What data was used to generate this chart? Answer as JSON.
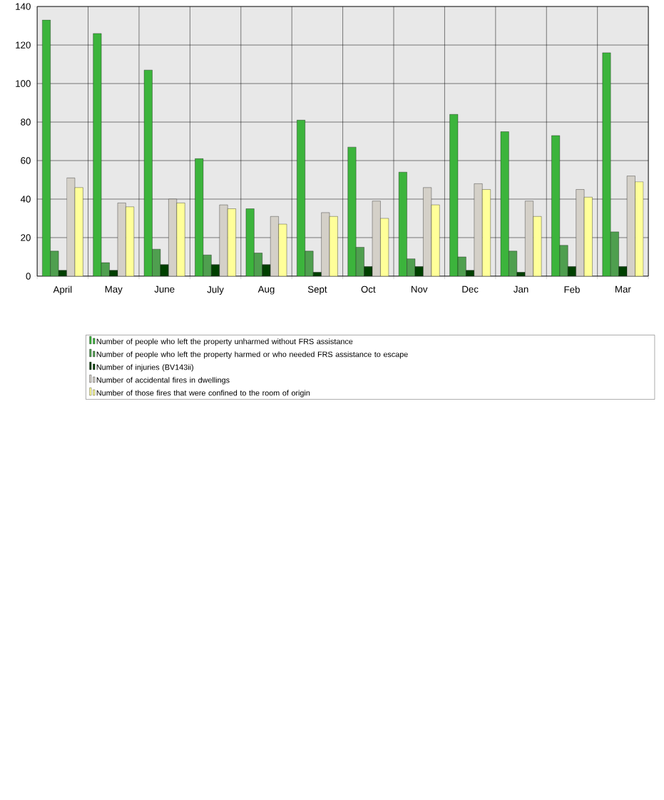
{
  "chart_data": {
    "type": "bar",
    "categories": [
      "April",
      "May",
      "June",
      "July",
      "Aug",
      "Sept",
      "Oct",
      "Nov",
      "Dec",
      "Jan",
      "Feb",
      "Mar"
    ],
    "series": [
      {
        "name": "Number of people who left the property unharmed without FRS assistance",
        "color": "#3cb43c",
        "values": [
          133,
          126,
          107,
          61,
          35,
          81,
          67,
          54,
          84,
          75,
          73,
          116
        ]
      },
      {
        "name": "Number of people who left the property harmed or who needed FRS assistance to escape",
        "color": "#4f9f4f",
        "values": [
          13,
          7,
          14,
          11,
          12,
          13,
          15,
          9,
          10,
          13,
          16,
          23
        ]
      },
      {
        "name": "Number of injuries (BV143ii)",
        "color": "#004000",
        "values": [
          3,
          3,
          6,
          6,
          6,
          2,
          5,
          5,
          3,
          2,
          5,
          5
        ]
      },
      {
        "name": "Number of accidental fires in dwellings",
        "color": "#d4d0c8",
        "values": [
          51,
          38,
          40,
          37,
          31,
          33,
          39,
          46,
          48,
          39,
          45,
          52
        ]
      },
      {
        "name": "Number of those fires that were confined to the room of origin",
        "color": "#ffff99",
        "values": [
          46,
          36,
          38,
          35,
          27,
          31,
          30,
          37,
          45,
          31,
          41,
          49
        ]
      }
    ],
    "ylim": [
      0,
      140
    ],
    "yticks": [
      0,
      20,
      40,
      60,
      80,
      100,
      120,
      140
    ],
    "grid": true,
    "legend": "bottom"
  }
}
